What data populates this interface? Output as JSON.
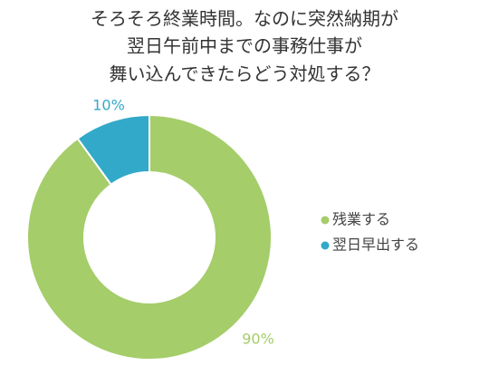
{
  "chart_data": {
    "type": "donut",
    "title": [
      "そろそろ終業時間。なのに突然納期が",
      "翌日午前中までの事務仕事が",
      "舞い込んできたらどう対処する？"
    ],
    "categories": [
      "残業する",
      "翌日早出する"
    ],
    "values": [
      90,
      10
    ],
    "value_labels": [
      "90%",
      "10%"
    ],
    "colors": [
      "#a5cd6a",
      "#33a9c9"
    ],
    "legend": "right"
  }
}
